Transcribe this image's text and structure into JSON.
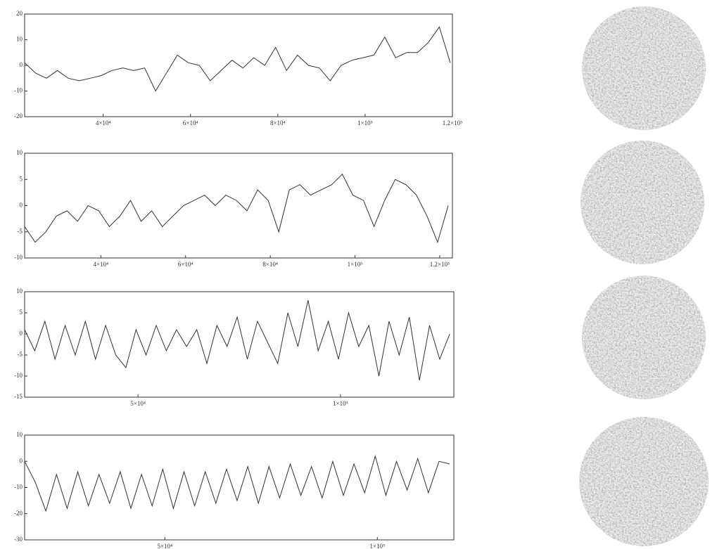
{
  "chart_data": [
    {
      "type": "line",
      "color": "#333333",
      "x": [
        22000,
        24500,
        27000,
        29500,
        32000,
        34500,
        37000,
        39500,
        42000,
        44500,
        47000,
        49500,
        52000,
        54500,
        57000,
        59500,
        62000,
        64500,
        67000,
        69500,
        72000,
        74500,
        77000,
        79500,
        82000,
        84500,
        87000,
        89500,
        92000,
        94500,
        97000,
        99500,
        102000,
        104500,
        107000,
        109500,
        112000,
        114500,
        117000,
        119500
      ],
      "values": [
        1,
        -3,
        -5,
        -2,
        -5,
        -6,
        -5,
        -4,
        -2,
        -1,
        -2,
        -1,
        -10,
        -3,
        4,
        1,
        0,
        -6,
        -2,
        2,
        -1,
        3,
        0,
        7,
        -2,
        4,
        0,
        -1,
        -6,
        0,
        2,
        3,
        4,
        11,
        3,
        5,
        5,
        9,
        15,
        1
      ],
      "xlim": [
        22000,
        120000
      ],
      "ylim": [
        -20,
        20
      ],
      "yticks": [
        -20,
        -10,
        0,
        10,
        20
      ],
      "xticks": [
        {
          "value": 40000,
          "label": "4×10⁴"
        },
        {
          "value": 60000,
          "label": "6×10⁴"
        },
        {
          "value": 80000,
          "label": "8×10⁴"
        },
        {
          "value": 100000,
          "label": "1×10⁵"
        },
        {
          "value": 120000,
          "label": "1.2×10⁵"
        }
      ]
    },
    {
      "type": "line",
      "color": "#333333",
      "x": [
        22000,
        24500,
        27000,
        29500,
        32000,
        34500,
        37000,
        39500,
        42000,
        44500,
        47000,
        49500,
        52000,
        54500,
        57000,
        59500,
        62000,
        64500,
        67000,
        69500,
        72000,
        74500,
        77000,
        79500,
        82000,
        84500,
        87000,
        89500,
        92000,
        94500,
        97000,
        99500,
        102000,
        104500,
        107000,
        109500,
        112000,
        114500,
        117000,
        119500,
        122000
      ],
      "values": [
        -4,
        -7,
        -5,
        -2,
        -1,
        -3,
        0,
        -1,
        -4,
        -2,
        1,
        -3,
        -1,
        -4,
        -2,
        0,
        1,
        2,
        0,
        2,
        1,
        -1,
        3,
        1,
        -5,
        3,
        4,
        2,
        3,
        4,
        6,
        2,
        1,
        -4,
        1,
        5,
        4,
        2,
        -2,
        -7,
        0
      ],
      "xlim": [
        22000,
        123000
      ],
      "ylim": [
        -10,
        10
      ],
      "yticks": [
        -10,
        -5,
        0,
        5,
        10
      ],
      "xticks": [
        {
          "value": 40000,
          "label": "4×10⁴"
        },
        {
          "value": 60000,
          "label": "6×10⁴"
        },
        {
          "value": 80000,
          "label": "8×10⁴"
        },
        {
          "value": 100000,
          "label": "1×10⁵"
        },
        {
          "value": 120000,
          "label": "1.2×10⁵"
        }
      ]
    },
    {
      "type": "line",
      "color": "#333333",
      "x": [
        22000,
        24500,
        27000,
        29500,
        32000,
        34500,
        37000,
        39500,
        42000,
        44500,
        47000,
        49500,
        52000,
        54500,
        57000,
        59500,
        62000,
        64500,
        67000,
        69500,
        72000,
        74500,
        77000,
        79500,
        82000,
        84500,
        87000,
        89500,
        92000,
        94500,
        97000,
        99500,
        102000,
        104500,
        107000,
        109500,
        112000,
        114500,
        117000,
        119500,
        122000,
        124500,
        127000
      ],
      "values": [
        1,
        -4,
        3,
        -6,
        2,
        -5,
        3,
        -6,
        2,
        -5,
        -8,
        1,
        -5,
        2,
        -4,
        1,
        -3,
        1,
        -7,
        2,
        -3,
        4,
        -6,
        3,
        -2,
        -7,
        5,
        -3,
        8,
        -4,
        3,
        -6,
        5,
        -3,
        2,
        -10,
        3,
        -5,
        4,
        -11,
        2,
        -6,
        0
      ],
      "xlim": [
        22000,
        128000
      ],
      "ylim": [
        -15,
        10
      ],
      "yticks": [
        -15,
        -10,
        -5,
        0,
        5,
        10
      ],
      "xticks": [
        {
          "value": 50000,
          "label": "5×10⁴"
        },
        {
          "value": 100000,
          "label": "1×10⁵"
        }
      ]
    },
    {
      "type": "line",
      "color": "#333333",
      "x": [
        17000,
        19500,
        22000,
        24500,
        27000,
        29500,
        32000,
        34500,
        37000,
        39500,
        42000,
        44500,
        47000,
        49500,
        52000,
        54500,
        57000,
        59500,
        62000,
        64500,
        67000,
        69500,
        72000,
        74500,
        77000,
        79500,
        82000,
        84500,
        87000,
        89500,
        92000,
        94500,
        97000,
        99500,
        102000,
        104500,
        107000,
        109500,
        112000,
        114500,
        117000
      ],
      "values": [
        0,
        -8,
        -19,
        -5,
        -18,
        -4,
        -17,
        -5,
        -16,
        -4,
        -18,
        -5,
        -17,
        -3,
        -18,
        -4,
        -17,
        -4,
        -16,
        -3,
        -15,
        -2,
        -16,
        -2,
        -14,
        -1,
        -13,
        -2,
        -14,
        0,
        -13,
        -1,
        -12,
        2,
        -13,
        0,
        -11,
        1,
        -12,
        0,
        -1
      ],
      "xlim": [
        17000,
        118000
      ],
      "ylim": [
        -30,
        10
      ],
      "yticks": [
        -30,
        -20,
        -10,
        0,
        10
      ],
      "xticks": [
        {
          "value": 50000,
          "label": "5×10⁴"
        },
        {
          "value": 100000,
          "label": "1×10⁵"
        }
      ]
    }
  ]
}
